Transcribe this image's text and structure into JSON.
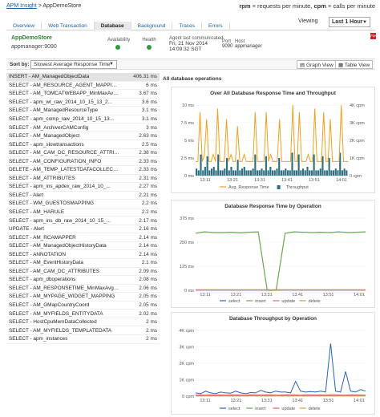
{
  "breadcrumb": {
    "root": "APM Insight",
    "sep": ">",
    "current": "AppDemoStore"
  },
  "legend_top": {
    "rpm_label": "rpm",
    "rpm_desc": " = requests per minute, ",
    "cpm_label": "cpm",
    "cpm_desc": " = calls per minute"
  },
  "tabs": [
    "Overview",
    "Web Transaction",
    "Database",
    "Background",
    "Traces",
    "Errors"
  ],
  "active_tab": "Database",
  "viewing": {
    "label": "Viewing",
    "value": "Last 1 Hour"
  },
  "app": {
    "name": "AppDemoStore",
    "host": "appmanager:9090"
  },
  "status": {
    "availability": "Availability",
    "health": "Health"
  },
  "agent": {
    "label": "Agent last communicated",
    "date": "Fri, 21 Nov 2014",
    "time": "14:09:32 SGT"
  },
  "port": {
    "label": "Port",
    "value": "9090"
  },
  "host": {
    "label": "Host",
    "value": "appmanager"
  },
  "sort": {
    "label": "Sort by:",
    "value": "Slowest Average Response Time"
  },
  "views": {
    "graph": "Graph View",
    "table": "Table View"
  },
  "operations": [
    {
      "q": "INSERT - AM_ManagedObjectData",
      "t": "406.31 ms"
    },
    {
      "q": "SELECT - AM_RESOURCE_AGENT_MAPPING",
      "t": "6 ms"
    },
    {
      "q": "SELECT - AM_TOMCATWEBAPP_MinMaxAvgD...",
      "t": "3.67 ms"
    },
    {
      "q": "SELECT - apm_wt_raw_2014_10_15_13_2...",
      "t": "3.6 ms"
    },
    {
      "q": "SELECT - AM_ManagedResourceType",
      "t": "3.1 ms"
    },
    {
      "q": "SELECT - apm_comp_raw_2014_10_15_13...",
      "t": "3.1 ms"
    },
    {
      "q": "SELECT - AM_ArchiverCAMConfig",
      "t": "3 ms"
    },
    {
      "q": "SELECT - AM_ManagedObject",
      "t": "2.63 ms"
    },
    {
      "q": "SELECT - apm_slowtransactions",
      "t": "2.5 ms"
    },
    {
      "q": "SELECT - AM_CAM_DC_RESOURCE_ATTRIB...",
      "t": "2.38 ms"
    },
    {
      "q": "SELECT - AM_CONFIGURATION_INFO",
      "t": "2.33 ms"
    },
    {
      "q": "DELETE - AM_TEMP_LATESTDATACOLLECTE...",
      "t": "2.33 ms"
    },
    {
      "q": "SELECT - AM_ATTRIBUTES",
      "t": "2.31 ms"
    },
    {
      "q": "SELECT - apm_ins_apdex_raw_2014_10_...",
      "t": "2.27 ms"
    },
    {
      "q": "SELECT - Alert",
      "t": "2.21 ms"
    },
    {
      "q": "SELECT - WM_GUESTOSMAPPING",
      "t": "2.2 ms"
    },
    {
      "q": "SELECT - AM_HARULE",
      "t": "2.2 ms"
    },
    {
      "q": "SELECT - apm_ins_db_raw_2014_10_15_...",
      "t": "2.17 ms"
    },
    {
      "q": "UPDATE - Alert",
      "t": "2.16 ms"
    },
    {
      "q": "SELECT - AM_RCAMAPPER",
      "t": "2.14 ms"
    },
    {
      "q": "SELECT - AM_ManagedObjectHistoryData",
      "t": "2.14 ms"
    },
    {
      "q": "SELECT - ANNOTATION",
      "t": "2.14 ms"
    },
    {
      "q": "SELECT - AM_EventHistoryData",
      "t": "2.1 ms"
    },
    {
      "q": "SELECT - AM_CAM_DC_ATTRIBUTES",
      "t": "2.09 ms"
    },
    {
      "q": "SELECT - apm_dboperations",
      "t": "2.08 ms"
    },
    {
      "q": "SELECT - AM_RESPONSETIME_MinMaxAvgD...",
      "t": "2.06 ms"
    },
    {
      "q": "SELECT - AM_MYPAGE_WIDGET_MAPPING",
      "t": "2.05 ms"
    },
    {
      "q": "SELECT - AM_GMapCountryCoord",
      "t": "2.05 ms"
    },
    {
      "q": "SELECT - AM_MYFIELDS_ENTITYDATA",
      "t": "2.02 ms"
    },
    {
      "q": "SELECT - HostCpuMemDataCollected",
      "t": "2 ms"
    },
    {
      "q": "SELECT - AM_MYFIELDS_TEMPLATEDATA",
      "t": "2 ms"
    },
    {
      "q": "SELECT - apm_instances",
      "t": "2 ms"
    }
  ],
  "right_panel": {
    "header": "All database operations"
  },
  "chart_data": [
    {
      "type": "line",
      "title": "Over All Database Response Time and Throughput",
      "ylabel_left_ticks": [
        "0 ms",
        "2.5 ms",
        "5 ms",
        "7.5 ms",
        "10 ms"
      ],
      "ylabel_right_ticks": [
        "0 cpm",
        "1K cpm",
        "2K cpm",
        "3K cpm",
        "4K cpm"
      ],
      "x_ticks": [
        "13:11",
        "13:21",
        "13:31",
        "13:41",
        "13:51",
        "14:01"
      ],
      "ylim_left": [
        0,
        10
      ],
      "ylim_right": [
        0,
        4000
      ],
      "series": [
        {
          "name": "Avg. Response Time",
          "color": "#f0a020",
          "axis": "left",
          "values": [
            2,
            2,
            9,
            2,
            3,
            8,
            2,
            2,
            3,
            2,
            9.5,
            2,
            2,
            2,
            8,
            2,
            3,
            2,
            2,
            7,
            2,
            2,
            3,
            2,
            2,
            2,
            2,
            9,
            2,
            2,
            2,
            2,
            9,
            2,
            3,
            2,
            2,
            2,
            8,
            2,
            2,
            2,
            2,
            2,
            10,
            2,
            2,
            9,
            2,
            2,
            2,
            3,
            2,
            2,
            9.5,
            2,
            2,
            2,
            9,
            2,
            2,
            8,
            2,
            2,
            2,
            2,
            10.5,
            2,
            2,
            2
          ]
        },
        {
          "name": "Throughput",
          "color": "#2a6f7f",
          "axis": "right",
          "kind": "bar",
          "values": [
            400,
            300,
            1200,
            300,
            500,
            1100,
            300,
            400,
            500,
            300,
            1200,
            300,
            300,
            400,
            1000,
            300,
            500,
            300,
            300,
            900,
            300,
            400,
            500,
            300,
            300,
            300,
            400,
            1200,
            300,
            300,
            400,
            300,
            1100,
            300,
            500,
            300,
            300,
            400,
            1000,
            300,
            300,
            400,
            300,
            300,
            1300,
            300,
            300,
            1200,
            300,
            400,
            300,
            500,
            300,
            300,
            1200,
            300,
            300,
            400,
            1100,
            300,
            300,
            1000,
            300,
            300,
            400,
            300,
            1300,
            300,
            400,
            300
          ]
        }
      ]
    },
    {
      "type": "line",
      "title": "Database Response Time by Operation",
      "y_ticks": [
        "0 ms",
        "125 ms",
        "250 ms",
        "375 ms"
      ],
      "ylim": [
        0,
        500
      ],
      "x_ticks": [
        "13:11",
        "13:21",
        "13:31",
        "13:41",
        "13:51",
        "14:01"
      ],
      "series": [
        {
          "name": "select",
          "color": "#2962b5",
          "values": [
            2,
            2,
            2,
            2,
            2,
            2,
            2,
            2,
            2,
            2,
            2,
            2,
            2,
            2,
            2,
            2,
            2,
            2,
            2,
            2
          ]
        },
        {
          "name": "insert",
          "color": "#6aa84f",
          "values": [
            395,
            405,
            400,
            400,
            402,
            398,
            402,
            405,
            0,
            0,
            395,
            405,
            402,
            400,
            402,
            400,
            405,
            400,
            402,
            405
          ]
        },
        {
          "name": "update",
          "color": "#e06666",
          "values": [
            3,
            3,
            3,
            3,
            3,
            3,
            3,
            3,
            3,
            3,
            3,
            3,
            3,
            3,
            3,
            3,
            3,
            3,
            3,
            3
          ]
        },
        {
          "name": "delete",
          "color": "#c8a040",
          "values": [
            4,
            4,
            4,
            4,
            4,
            4,
            4,
            4,
            4,
            4,
            4,
            4,
            4,
            4,
            4,
            4,
            4,
            4,
            4,
            4
          ]
        }
      ]
    },
    {
      "type": "line",
      "title": "Database Throughput by Operation",
      "y_ticks": [
        "0 cpm",
        "1K cpm",
        "2K cpm",
        "3K cpm",
        "4K cpm"
      ],
      "ylim": [
        0,
        4000
      ],
      "x_ticks": [
        "13:11",
        "13:21",
        "13:31",
        "13:41",
        "13:51",
        "14:01"
      ],
      "series": [
        {
          "name": "select",
          "color": "#2962b5",
          "values": [
            200,
            150,
            300,
            200,
            150,
            250,
            200,
            180,
            300,
            200,
            150,
            220,
            200,
            350,
            250,
            200,
            300,
            250,
            250,
            200,
            900,
            300,
            250,
            280,
            250,
            300,
            250,
            3200,
            300,
            250,
            1500,
            300,
            250,
            400,
            300
          ]
        },
        {
          "name": "insert",
          "color": "#6aa84f",
          "values": [
            30,
            30,
            30,
            30,
            30,
            30,
            30,
            30,
            30,
            30,
            30,
            30,
            30,
            30,
            30,
            30,
            30,
            30,
            30,
            30,
            30,
            30,
            30,
            30,
            30,
            30,
            30,
            30,
            30,
            30,
            30,
            30,
            30,
            30,
            30
          ]
        },
        {
          "name": "update",
          "color": "#e06666",
          "values": [
            60,
            80,
            60,
            90,
            70,
            80,
            60,
            90,
            80,
            70,
            60,
            90,
            80,
            70,
            90,
            80,
            60,
            70,
            90,
            80,
            70,
            60,
            80,
            90,
            70,
            80,
            60,
            90,
            80,
            70,
            60,
            90,
            80,
            70,
            60
          ]
        },
        {
          "name": "delete",
          "color": "#c8a040",
          "values": [
            10,
            10,
            10,
            10,
            10,
            10,
            10,
            10,
            10,
            10,
            10,
            10,
            10,
            10,
            10,
            10,
            10,
            10,
            10,
            10,
            10,
            10,
            10,
            10,
            10,
            10,
            10,
            10,
            10,
            10,
            10,
            10,
            10,
            10,
            10
          ]
        }
      ]
    }
  ]
}
